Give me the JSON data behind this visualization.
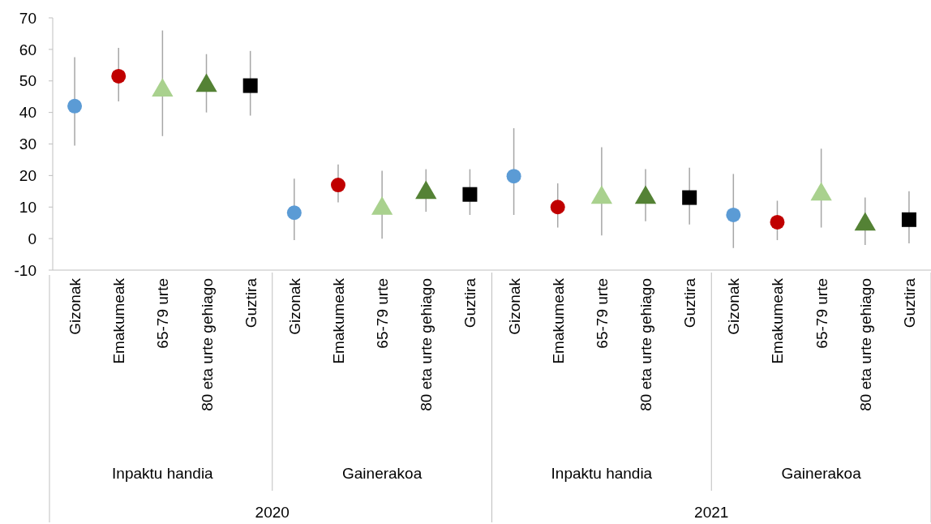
{
  "chart_data": {
    "type": "scatter",
    "categories": [
      "Gizonak",
      "Emakumeak",
      "65-79 urte",
      "80 eta urte gehiago",
      "Guztira",
      "Gizonak",
      "Emakumeak",
      "65-79 urte",
      "80 eta urte gehiago",
      "Guztira",
      "Gizonak",
      "Emakumeak",
      "65-79 urte",
      "80 eta urte gehiago",
      "Guztira",
      "Gizonak",
      "Emakumeak",
      "65-79 urte",
      "80 eta urte gehiago",
      "Guztira"
    ],
    "series": [
      {
        "color": "#5b9bd5",
        "marker": "circle",
        "values": [
          42,
          null,
          null,
          null,
          null,
          8.2,
          null,
          null,
          null,
          null,
          19.8,
          null,
          null,
          null,
          null,
          7.5,
          null,
          null,
          null,
          null
        ],
        "errors": [
          [
            29.5,
            57.5
          ],
          null,
          null,
          null,
          null,
          [
            -0.5,
            19
          ],
          null,
          null,
          null,
          null,
          [
            7.5,
            35
          ],
          null,
          null,
          null,
          null,
          [
            -3,
            20.5
          ],
          null,
          null,
          null,
          null
        ]
      },
      {
        "color": "#c00000",
        "marker": "circle",
        "values": [
          null,
          51.5,
          null,
          null,
          null,
          null,
          17,
          null,
          null,
          null,
          null,
          10,
          null,
          null,
          null,
          null,
          5.2,
          null,
          null,
          null
        ],
        "errors": [
          null,
          [
            43.5,
            60.5
          ],
          null,
          null,
          null,
          null,
          [
            11.5,
            23.5
          ],
          null,
          null,
          null,
          null,
          [
            3.5,
            17.5
          ],
          null,
          null,
          null,
          null,
          [
            -0.5,
            12
          ],
          null,
          null,
          null
        ]
      },
      {
        "color": "#a9d18e",
        "marker": "triangle",
        "values": [
          null,
          null,
          47,
          null,
          null,
          null,
          null,
          9.5,
          null,
          null,
          null,
          null,
          13,
          null,
          null,
          null,
          null,
          14,
          null,
          null
        ],
        "errors": [
          null,
          null,
          [
            32.5,
            66
          ],
          null,
          null,
          null,
          null,
          [
            0,
            21.5
          ],
          null,
          null,
          null,
          null,
          [
            1,
            29
          ],
          null,
          null,
          null,
          null,
          [
            3.5,
            28.5
          ],
          null,
          null
        ]
      },
      {
        "color": "#548235",
        "marker": "triangle",
        "values": [
          null,
          null,
          null,
          48.5,
          null,
          null,
          null,
          null,
          14.5,
          null,
          null,
          null,
          null,
          13,
          null,
          null,
          null,
          null,
          4.5,
          null
        ],
        "errors": [
          null,
          null,
          null,
          [
            40,
            58.5
          ],
          null,
          null,
          null,
          null,
          [
            8.5,
            22
          ],
          null,
          null,
          null,
          null,
          [
            5.5,
            22
          ],
          null,
          null,
          null,
          null,
          [
            -2,
            13
          ],
          null
        ]
      },
      {
        "color": "#000000",
        "marker": "square",
        "values": [
          null,
          null,
          null,
          null,
          48.5,
          null,
          null,
          null,
          null,
          14,
          null,
          null,
          null,
          null,
          13,
          null,
          null,
          null,
          null,
          6
        ],
        "errors": [
          null,
          null,
          null,
          null,
          [
            39,
            59.5
          ],
          null,
          null,
          null,
          null,
          [
            7.5,
            22
          ],
          null,
          null,
          null,
          null,
          [
            4.5,
            22.5
          ],
          null,
          null,
          null,
          null,
          [
            -1.5,
            15
          ]
        ]
      }
    ],
    "ylim": [
      -10,
      70
    ],
    "yticks": [
      -10,
      0,
      10,
      20,
      30,
      40,
      50,
      60,
      70
    ],
    "annotations": [
      "Inpaktu handia",
      "Gainerakoa",
      "Inpaktu handia",
      "Gainerakoa",
      "2020",
      "2021"
    ]
  }
}
